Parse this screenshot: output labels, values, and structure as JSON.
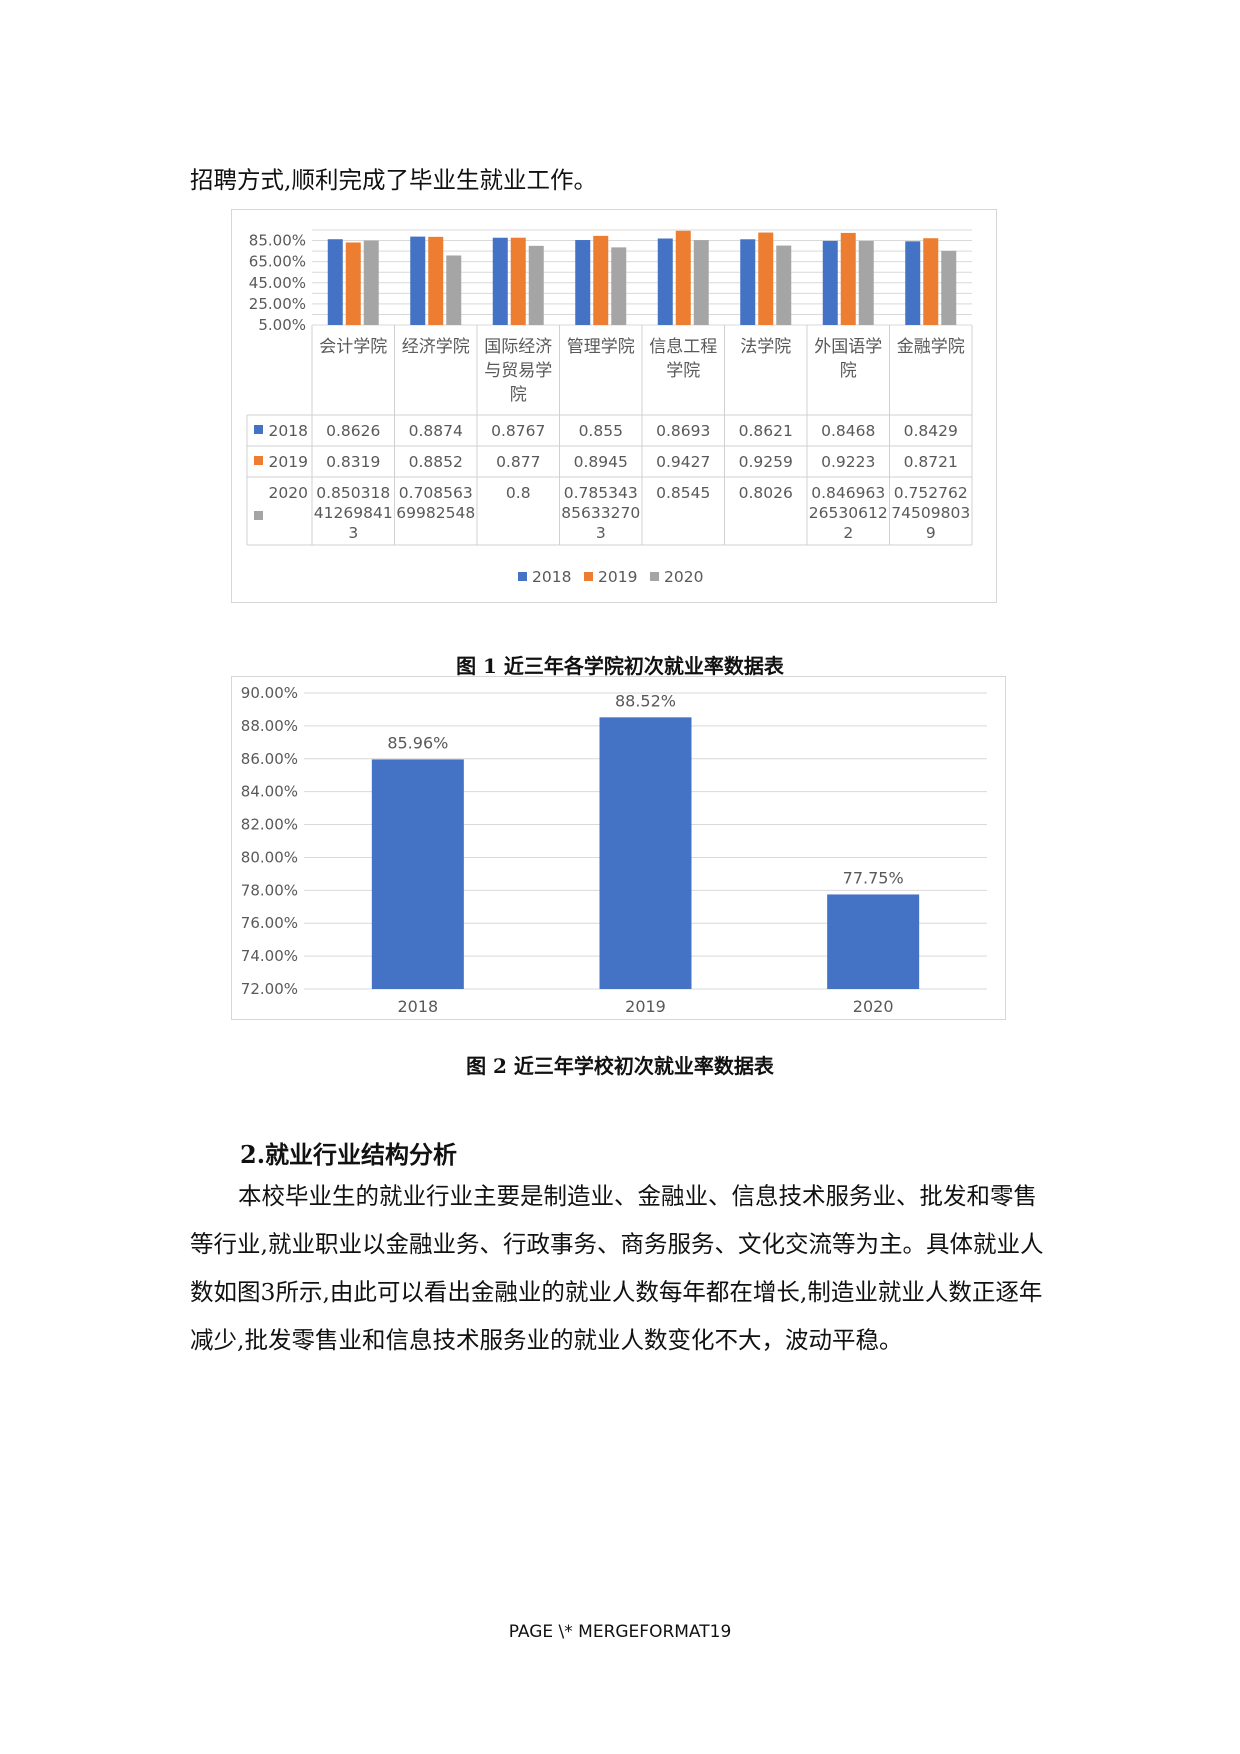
{
  "intro_text": "招聘方式,顺利完成了毕业生就业工作。",
  "figure1": {
    "caption": "图 1 近三年各学院初次就业率数据表",
    "chart_data": {
      "type": "bar",
      "categories": [
        "会计学院",
        "经济学院",
        "国际经济与贸易学院",
        "管理学院",
        "信息工程学院",
        "法学院",
        "外国语学院",
        "金融学院"
      ],
      "category_lines": [
        [
          "会计学院"
        ],
        [
          "经济学院"
        ],
        [
          "国际经济",
          "与贸易学",
          "院"
        ],
        [
          "管理学院"
        ],
        [
          "信息工程",
          "学院"
        ],
        [
          "法学院"
        ],
        [
          "外国语学",
          "院"
        ],
        [
          "金融学院"
        ]
      ],
      "series": [
        {
          "name": "2018",
          "color": "#4472c4",
          "values": [
            0.8626,
            0.8874,
            0.8767,
            0.855,
            0.8693,
            0.8621,
            0.8468,
            0.8429
          ],
          "labels": [
            [
              "0.8626"
            ],
            [
              "0.8874"
            ],
            [
              "0.8767"
            ],
            [
              "0.855"
            ],
            [
              "0.8693"
            ],
            [
              "0.8621"
            ],
            [
              "0.8468"
            ],
            [
              "0.8429"
            ]
          ]
        },
        {
          "name": "2019",
          "color": "#ed7d31",
          "values": [
            0.8319,
            0.8852,
            0.877,
            0.8945,
            0.9427,
            0.9259,
            0.9223,
            0.8721
          ],
          "labels": [
            [
              "0.8319"
            ],
            [
              "0.8852"
            ],
            [
              "0.877"
            ],
            [
              "0.8945"
            ],
            [
              "0.9427"
            ],
            [
              "0.9259"
            ],
            [
              "0.9223"
            ],
            [
              "0.8721"
            ]
          ]
        },
        {
          "name": "2020",
          "color": "#a5a5a5",
          "values": [
            0.8503184126984127,
            0.70856369982548,
            0.8,
            0.7853438563327033,
            0.8545,
            0.8026,
            0.8469632653061222,
            0.7527627450980392
          ],
          "labels": [
            [
              "0.850318",
              "41269841",
              "3"
            ],
            [
              "0.708563",
              "69982548"
            ],
            [
              "0.8"
            ],
            [
              "0.785343",
              "85633270",
              "3"
            ],
            [
              "0.8545"
            ],
            [
              "0.8026"
            ],
            [
              "0.846963",
              "26530612",
              "2"
            ],
            [
              "0.752762",
              "74509803",
              "9"
            ]
          ]
        }
      ],
      "y_ticks": [
        "85.00%",
        "65.00%",
        "45.00%",
        "25.00%",
        "5.00%"
      ],
      "ylim": [
        0.05,
        0.95
      ],
      "data_table": true,
      "legend": "bottom"
    }
  },
  "figure2": {
    "caption": "图 2 近三年学校初次就业率数据表",
    "chart_data": {
      "type": "bar",
      "categories": [
        "2018",
        "2019",
        "2020"
      ],
      "values": [
        0.8596,
        0.8852,
        0.7775
      ],
      "data_labels": [
        "85.96%",
        "88.52%",
        "77.75%"
      ],
      "y_ticks": [
        "90.00%",
        "88.00%",
        "86.00%",
        "84.00%",
        "82.00%",
        "80.00%",
        "78.00%",
        "76.00%",
        "74.00%",
        "72.00%"
      ],
      "ylim": [
        0.72,
        0.9
      ],
      "color": "#4472c4",
      "grid": true
    }
  },
  "section": {
    "heading": "2.就业行业结构分析",
    "paragraph": "本校毕业生的就业行业主要是制造业、金融业、信息技术服务业、批发和零售等行业,就业职业以金融业务、行政事务、商务服务、文化交流等为主。具体就业人数如图3所示,由此可以看出金融业的就业人数每年都在增长,制造业就业人数正逐年减少,批发零售业和信息技术服务业的就业人数变化不大，波动平稳。"
  },
  "footer": "PAGE   \\* MERGEFORMAT19"
}
